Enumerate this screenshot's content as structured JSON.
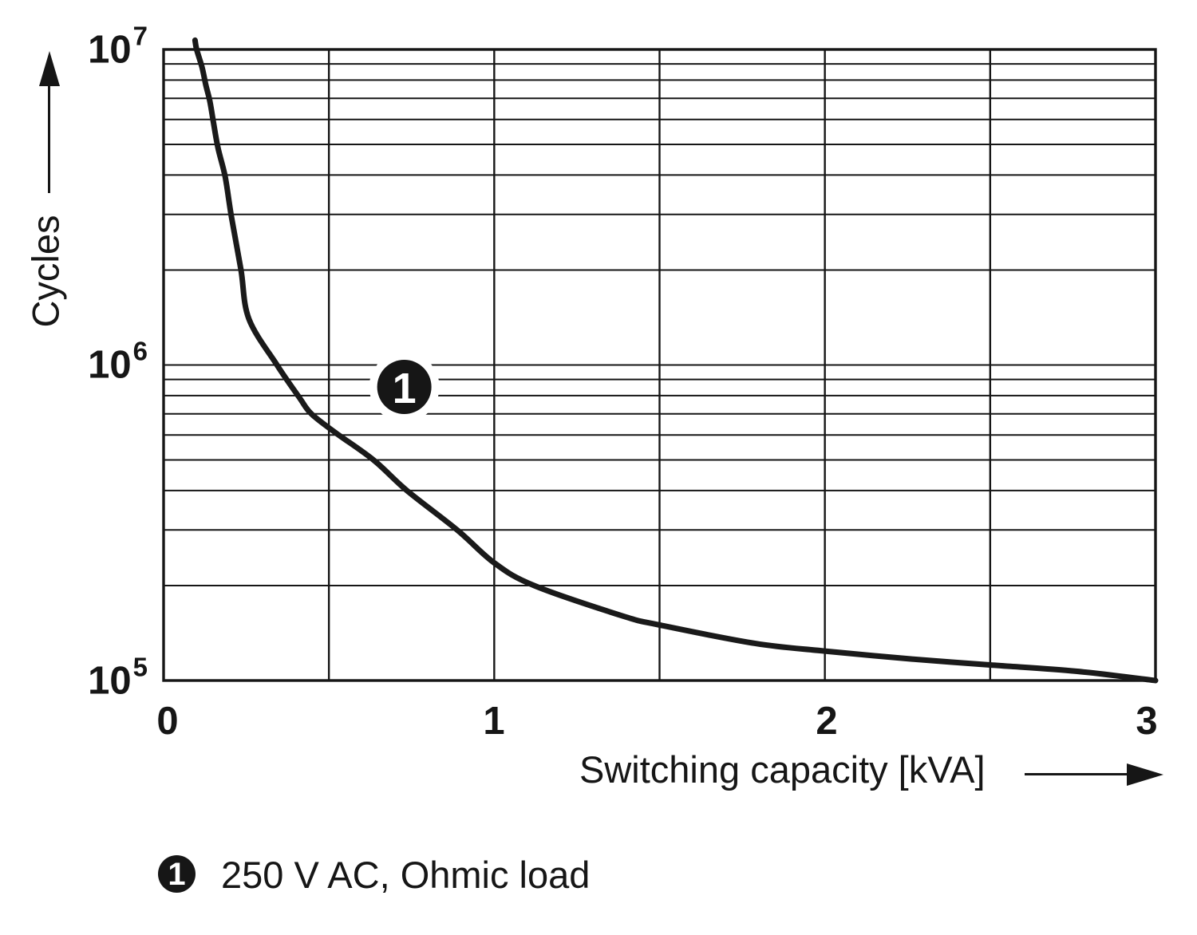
{
  "figure": {
    "background": "#ffffff",
    "ink": "#161616",
    "curve_color": "#1a1a1a"
  },
  "chart_data": {
    "type": "line",
    "title": "",
    "x_axis": {
      "title": "Switching capacity [kVA]",
      "scale": "linear",
      "min": 0,
      "max": 3,
      "gridline_step": 0.5,
      "ticks": [
        {
          "label": "0",
          "value": 0
        },
        {
          "label": "1",
          "value": 1
        },
        {
          "label": "2",
          "value": 2
        },
        {
          "label": "3",
          "value": 3
        }
      ]
    },
    "y_axis": {
      "title": "Cycles",
      "scale": "log",
      "min": 100000,
      "max": 10000000,
      "minor_gridlines": "log-decades 2-9",
      "ticks": [
        {
          "base": "10",
          "exp": "5",
          "value": 100000
        },
        {
          "base": "10",
          "exp": "6",
          "value": 1000000
        },
        {
          "base": "10",
          "exp": "7",
          "value": 10000000
        }
      ]
    },
    "grid": true,
    "legend_position": "below",
    "series": [
      {
        "name": "250 V AC, Ohmic load",
        "marker_label": "1",
        "points": [
          [
            0.095,
            10700000
          ],
          [
            0.1,
            10000000
          ],
          [
            0.116,
            8800000
          ],
          [
            0.128,
            7700000
          ],
          [
            0.14,
            6850000
          ],
          [
            0.15,
            5950000
          ],
          [
            0.164,
            4900000
          ],
          [
            0.186,
            3960000
          ],
          [
            0.205,
            2960000
          ],
          [
            0.234,
            2000000
          ],
          [
            0.258,
            1400000
          ],
          [
            0.343,
            1000000
          ],
          [
            0.41,
            790000
          ],
          [
            0.447,
            700000
          ],
          [
            0.52,
            610000
          ],
          [
            0.635,
            500000
          ],
          [
            0.736,
            400000
          ],
          [
            0.888,
            300000
          ],
          [
            1.0,
            236000
          ],
          [
            1.12,
            200000
          ],
          [
            1.39,
            160000
          ],
          [
            1.5,
            150000
          ],
          [
            1.79,
            131000
          ],
          [
            2.0,
            124000
          ],
          [
            2.26,
            117000
          ],
          [
            2.5,
            112000
          ],
          [
            2.76,
            107000
          ],
          [
            3.0,
            100000
          ]
        ]
      }
    ],
    "callout": {
      "label": "1",
      "x": 0.728,
      "y": 852000
    }
  },
  "legend": {
    "items": [
      {
        "bullet": "1",
        "label": "250 V AC, Ohmic load"
      }
    ]
  }
}
